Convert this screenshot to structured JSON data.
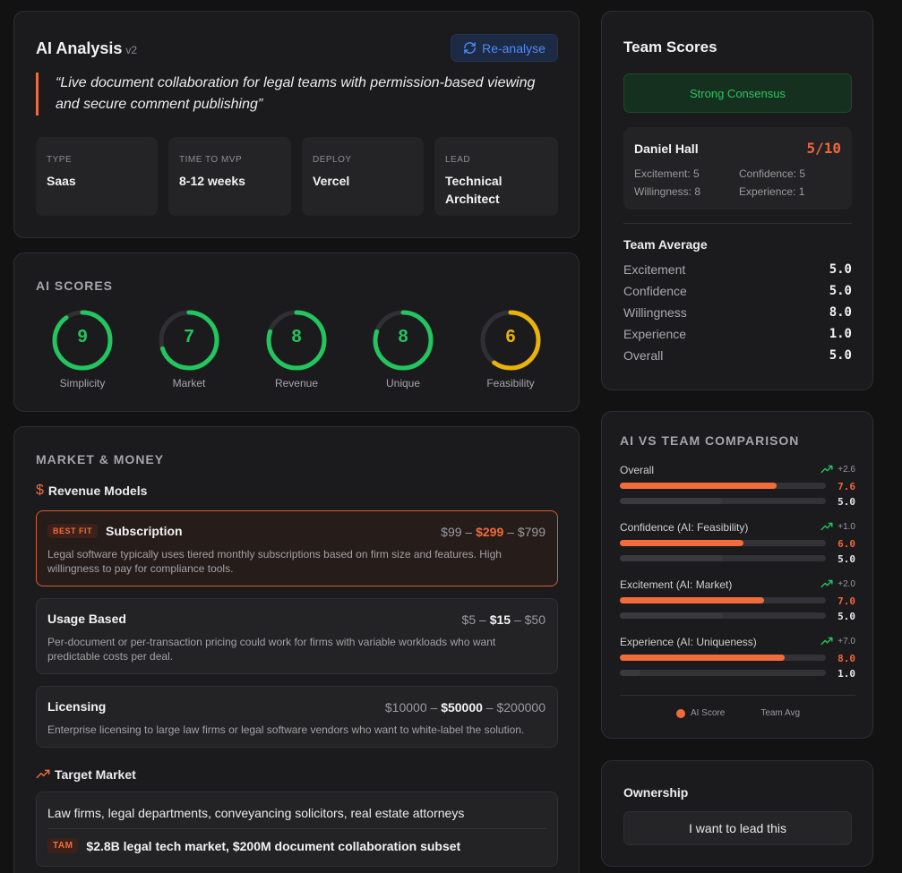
{
  "ai_analysis": {
    "title": "AI Analysis",
    "version": "v2",
    "reanalyse_label": "Re-analyse",
    "quote": "“Live document collaboration for legal teams with permission-based viewing and secure comment publishing”",
    "stats": [
      {
        "label": "TYPE",
        "value": "Saas"
      },
      {
        "label": "TIME TO MVP",
        "value": "8-12 weeks"
      },
      {
        "label": "DEPLOY",
        "value": "Vercel"
      },
      {
        "label": "LEAD",
        "value": "Technical Architect"
      }
    ]
  },
  "ai_scores": {
    "title": "AI SCORES",
    "max": 10,
    "items": [
      {
        "label": "Simplicity",
        "score": 9,
        "color": "#22c55e"
      },
      {
        "label": "Market",
        "score": 7,
        "color": "#22c55e"
      },
      {
        "label": "Revenue",
        "score": 8,
        "color": "#22c55e"
      },
      {
        "label": "Unique",
        "score": 8,
        "color": "#22c55e"
      },
      {
        "label": "Feasibility",
        "score": 6,
        "color": "#eab308"
      }
    ]
  },
  "market": {
    "title": "MARKET & MONEY",
    "revenue_title": "Revenue Models",
    "revenue_icon": "dollar-icon",
    "models": [
      {
        "badge": "BEST FIT",
        "name": "Subscription",
        "low": "$99",
        "mid": "$299",
        "high": "$799",
        "sep": "–",
        "desc": "Legal software typically uses tiered monthly subscriptions based on firm size and features. High willingness to pay for compliance tools."
      },
      {
        "badge": "",
        "name": "Usage Based",
        "low": "$5",
        "mid": "$15",
        "high": "$50",
        "sep": "–",
        "desc": "Per-document or per-transaction pricing could work for firms with variable workloads who want predictable costs per deal."
      },
      {
        "badge": "",
        "name": "Licensing",
        "low": "$10000",
        "mid": "$50000",
        "high": "$200000",
        "sep": "–",
        "desc": "Enterprise licensing to large law firms or legal software vendors who want to white-label the solution."
      }
    ],
    "target_title": "Target Market",
    "target_icon": "trending-up-icon",
    "target_text": "Law firms, legal departments, conveyancing solicitors, real estate attorneys",
    "tam_badge": "TAM",
    "tam_text": "$2.8B legal tech market, $200M document collaboration subset"
  },
  "team": {
    "title": "Team Scores",
    "consensus": "Strong Consensus",
    "member": {
      "name": "Daniel Hall",
      "score": "5/10",
      "excitement": "Excitement: 5",
      "confidence": "Confidence: 5",
      "willingness": "Willingness: 8",
      "experience": "Experience: 1"
    },
    "average_title": "Team Average",
    "averages": [
      {
        "label": "Excitement",
        "value": "5.0"
      },
      {
        "label": "Confidence",
        "value": "5.0"
      },
      {
        "label": "Willingness",
        "value": "8.0"
      },
      {
        "label": "Experience",
        "value": "1.0"
      },
      {
        "label": "Overall",
        "value": "5.0"
      }
    ]
  },
  "comparison": {
    "title": "AI VS TEAM COMPARISON",
    "max": 10,
    "rows": [
      {
        "label": "Overall",
        "delta": "+2.6",
        "ai": "7.6",
        "team": "5.0",
        "ai_value": 7.6,
        "team_value": 5.0
      },
      {
        "label": "Confidence (AI: Feasibility)",
        "delta": "+1.0",
        "ai": "6.0",
        "team": "5.0",
        "ai_value": 6.0,
        "team_value": 5.0
      },
      {
        "label": "Excitement (AI: Market)",
        "delta": "+2.0",
        "ai": "7.0",
        "team": "5.0",
        "ai_value": 7.0,
        "team_value": 5.0
      },
      {
        "label": "Experience (AI: Uniqueness)",
        "delta": "+7.0",
        "ai": "8.0",
        "team": "1.0",
        "ai_value": 8.0,
        "team_value": 1.0
      }
    ],
    "legend_ai": "AI Score",
    "legend_team": "Team Avg"
  },
  "ownership": {
    "title": "Ownership",
    "button_label": "I want to lead this"
  }
}
